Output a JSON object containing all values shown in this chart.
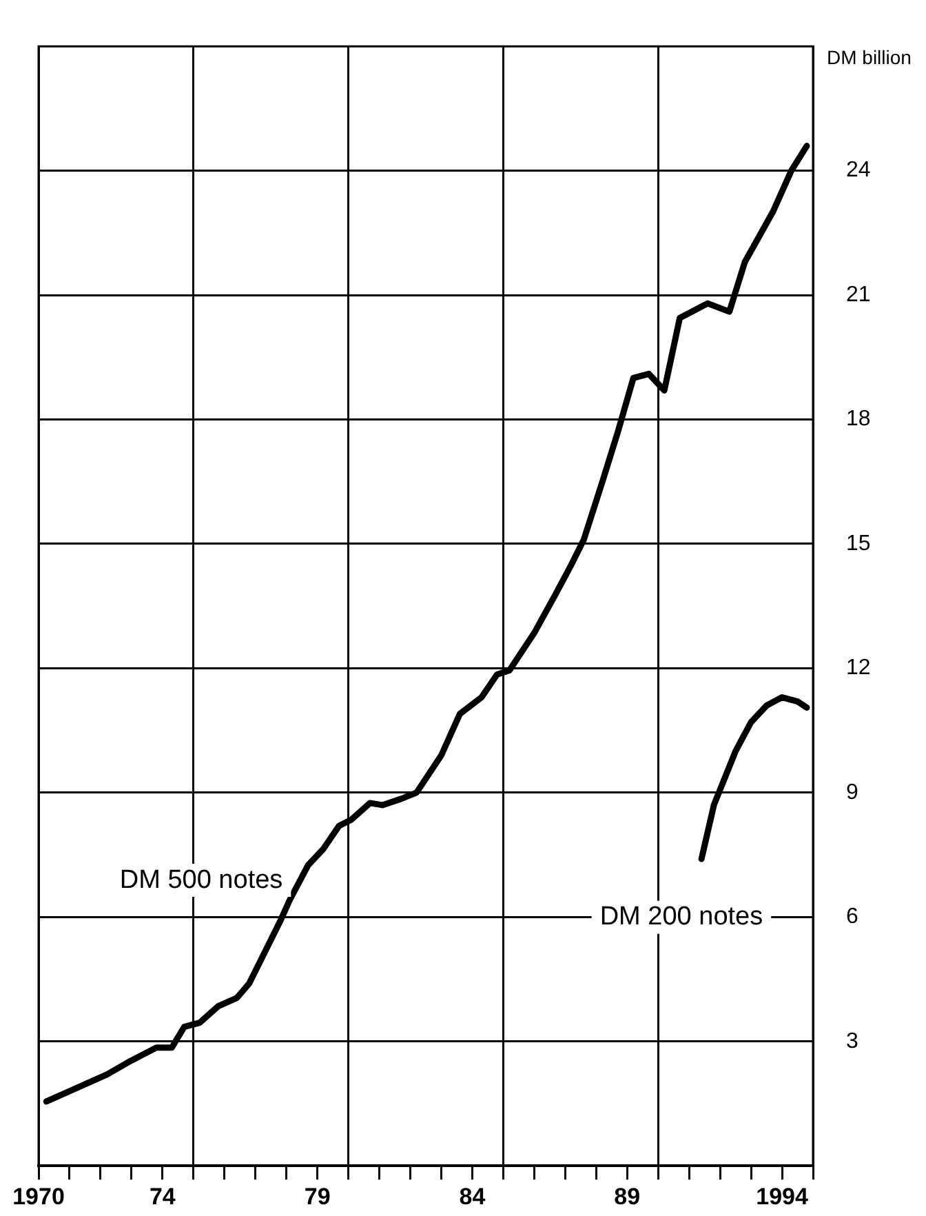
{
  "chart_data": {
    "type": "line",
    "ylabel": "DM billion",
    "xlim": [
      1970,
      1995
    ],
    "ylim": [
      0,
      27
    ],
    "xticks": [
      1970,
      {
        "value": 1971,
        "label": null
      },
      {
        "value": 1972,
        "label": null
      },
      {
        "value": 1973,
        "label": null
      },
      {
        "value": 1974,
        "label": "74"
      },
      {
        "value": 1975,
        "label": null
      },
      {
        "value": 1976,
        "label": null
      },
      {
        "value": 1977,
        "label": null
      },
      {
        "value": 1978,
        "label": null
      },
      {
        "value": 1979,
        "label": "79"
      },
      {
        "value": 1980,
        "label": null
      },
      {
        "value": 1981,
        "label": null
      },
      {
        "value": 1982,
        "label": null
      },
      {
        "value": 1983,
        "label": null
      },
      {
        "value": 1984,
        "label": "84"
      },
      {
        "value": 1985,
        "label": null
      },
      {
        "value": 1986,
        "label": null
      },
      {
        "value": 1987,
        "label": null
      },
      {
        "value": 1988,
        "label": null
      },
      {
        "value": 1989,
        "label": "89"
      },
      {
        "value": 1990,
        "label": null
      },
      {
        "value": 1991,
        "label": null
      },
      {
        "value": 1992,
        "label": null
      },
      {
        "value": 1993,
        "label": null
      },
      1994,
      {
        "value": 1995,
        "label": null
      }
    ],
    "yticks": [
      3,
      6,
      9,
      12,
      15,
      18,
      21,
      24
    ],
    "grid": true,
    "legend": false,
    "line_style": "solid",
    "marker": "none",
    "series": [
      {
        "color": "#000000",
        "x": [
          1970.25,
          1971.0,
          1972.2,
          1972.9,
          1973.8,
          1974.3,
          1974.7,
          1975.2,
          1975.8,
          1976.4,
          1976.8,
          1977.2,
          1977.8,
          1978.1,
          1978.7,
          1979.2,
          1979.7,
          1980.1,
          1980.7,
          1981.1,
          1981.7,
          1982.2,
          1983.0,
          1983.6,
          1984.3,
          1984.8,
          1985.2,
          1986.0,
          1986.7,
          1987.2,
          1987.6,
          1988.2,
          1988.7,
          1989.2,
          1989.7,
          1990.2,
          1990.7,
          1991.6,
          1992.3,
          1992.8,
          1993.7,
          1994.3,
          1994.8
        ],
        "values": [
          1.55,
          1.8,
          2.2,
          2.5,
          2.85,
          2.85,
          3.35,
          3.45,
          3.85,
          4.05,
          4.4,
          5.0,
          5.9,
          6.4,
          7.25,
          7.65,
          8.2,
          8.35,
          8.75,
          8.7,
          8.85,
          9.0,
          9.9,
          10.9,
          11.3,
          11.85,
          11.95,
          12.85,
          13.8,
          14.5,
          15.1,
          16.5,
          17.7,
          19.0,
          19.1,
          18.7,
          20.45,
          20.8,
          20.6,
          21.8,
          23.0,
          24.0,
          24.6
        ]
      },
      {
        "color": "#000000",
        "x": [
          1991.4,
          1991.8,
          1992.5,
          1993.0,
          1993.5,
          1994.0,
          1994.5,
          1994.8
        ],
        "values": [
          7.4,
          8.7,
          10.0,
          10.7,
          11.1,
          11.3,
          11.2,
          11.05
        ]
      }
    ],
    "annotations": [
      "DM 500 notes",
      "DM 200 notes"
    ]
  }
}
